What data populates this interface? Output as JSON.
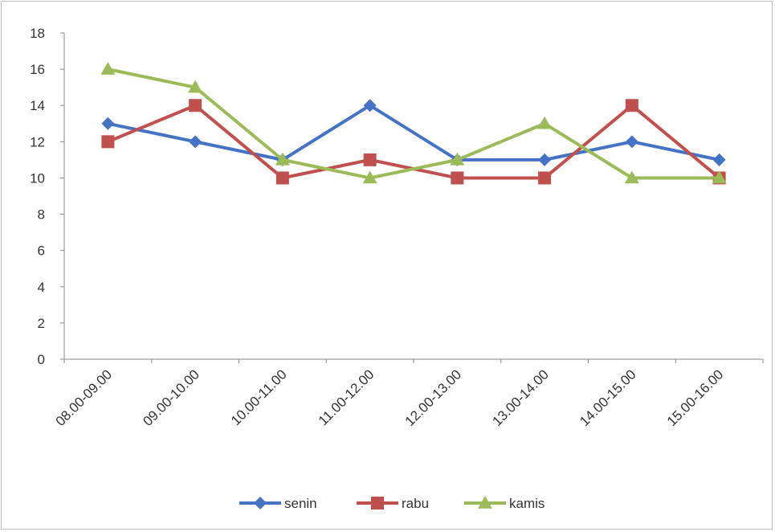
{
  "chart_data": {
    "type": "line",
    "title": "",
    "xlabel": "",
    "ylabel": "",
    "categories": [
      "08.00-09.00",
      "09.00-10.00",
      "10.00-11.00",
      "11.00-12.00",
      "12.00-13.00",
      "13.00-14.00",
      "14.00-15.00",
      "15.00-16.00"
    ],
    "ylim": [
      0,
      18
    ],
    "yticks": [
      0,
      2,
      4,
      6,
      8,
      10,
      12,
      14,
      16,
      18
    ],
    "grid": false,
    "legend_position": "bottom",
    "series": [
      {
        "name": "senin",
        "color": "#4472c4",
        "marker": "diamond",
        "values": [
          13,
          12,
          11,
          14,
          11,
          11,
          12,
          11
        ]
      },
      {
        "name": "rabu",
        "color": "#c0504d",
        "marker": "square",
        "values": [
          12,
          14,
          10,
          11,
          10,
          10,
          14,
          10
        ]
      },
      {
        "name": "kamis",
        "color": "#9bbb59",
        "marker": "triangle",
        "values": [
          16,
          15,
          11,
          10,
          11,
          13,
          10,
          10
        ]
      }
    ]
  }
}
